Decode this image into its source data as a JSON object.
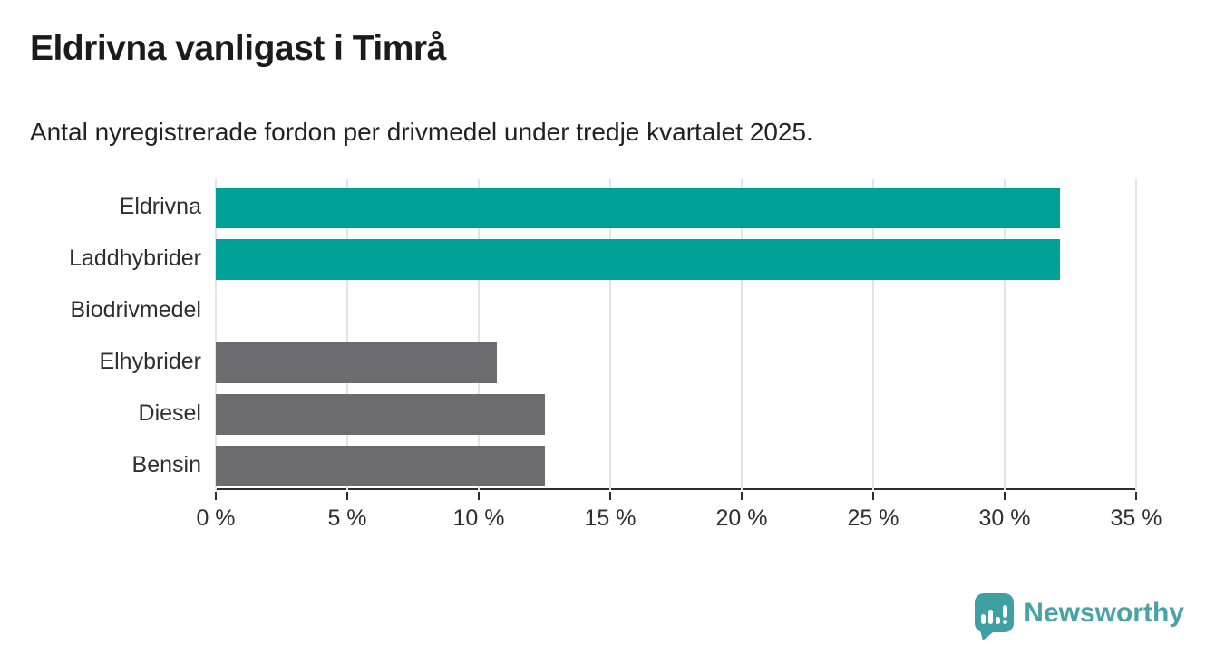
{
  "header": {
    "title": "Eldrivna vanligast i Timrå",
    "subtitle": "Antal nyregistrerade fordon per drivmedel under tredje kvartalet 2025."
  },
  "chart_data": {
    "type": "bar",
    "orientation": "horizontal",
    "title": "Eldrivna vanligast i Timrå",
    "subtitle": "Antal nyregistrerade fordon per drivmedel under tredje kvartalet 2025.",
    "categories": [
      "Eldrivna",
      "Laddhybrider",
      "Biodrivmedel",
      "Elhybrider",
      "Diesel",
      "Bensin"
    ],
    "values": [
      32.1,
      32.1,
      0,
      10.7,
      12.5,
      12.5
    ],
    "unit": "%",
    "xlabel": "",
    "ylabel": "",
    "xlim": [
      0,
      35
    ],
    "x_ticks": [
      0,
      5,
      10,
      15,
      20,
      25,
      30,
      35
    ],
    "x_tick_labels": [
      "0 %",
      "5 %",
      "10 %",
      "15 %",
      "20 %",
      "25 %",
      "30 %",
      "35 %"
    ],
    "grid": true,
    "legend": "none",
    "colors": {
      "highlight": "#00A196",
      "default": "#6B6B70"
    },
    "bar_colors": [
      "#00A196",
      "#00A196",
      "#6B6B70",
      "#6B6B70",
      "#6B6B70",
      "#6B6B70"
    ]
  },
  "footer": {
    "brand": "Newsworthy",
    "brand_text_color": "#4BA2A4",
    "brand_mark_color": "#3FA0A1"
  }
}
